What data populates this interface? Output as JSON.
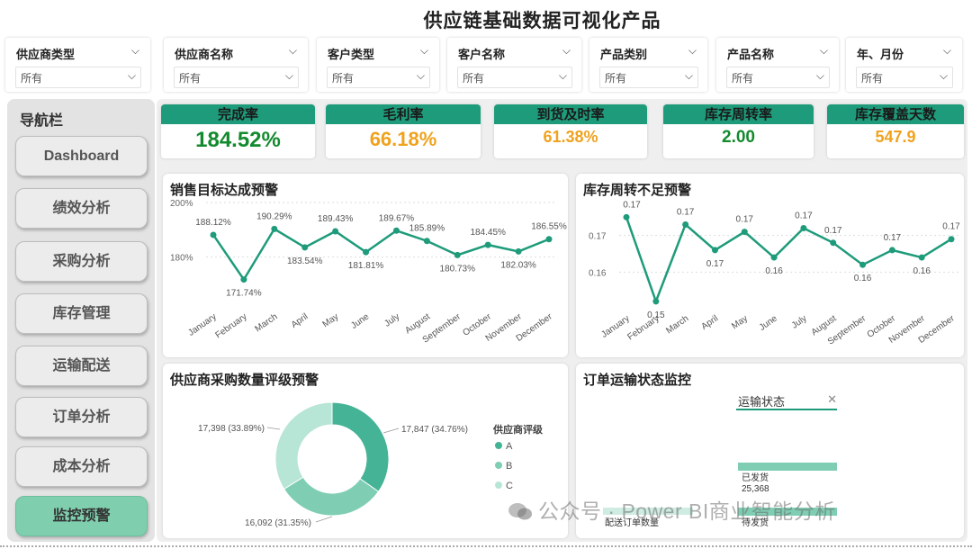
{
  "header": {
    "title": "供应链基础数据可视化产品"
  },
  "filters": [
    {
      "label": "供应商类型",
      "value": "所有"
    },
    {
      "label": "供应商名称",
      "value": "所有"
    },
    {
      "label": "客户类型",
      "value": "所有"
    },
    {
      "label": "客户名称",
      "value": "所有"
    },
    {
      "label": "产品类别",
      "value": "所有"
    },
    {
      "label": "产品名称",
      "value": "所有"
    },
    {
      "label": "年、月份",
      "value": "所有"
    }
  ],
  "nav": {
    "title": "导航栏",
    "items": [
      {
        "label": "Dashboard"
      },
      {
        "label": "绩效分析"
      },
      {
        "label": "采购分析"
      },
      {
        "label": "库存管理"
      },
      {
        "label": "运输配送"
      },
      {
        "label": "订单分析"
      },
      {
        "label": "成本分析"
      },
      {
        "label": "监控预警"
      }
    ],
    "active_index": 7
  },
  "kpis": [
    {
      "label": "完成率",
      "value": "184.52%",
      "color": "#138a2e"
    },
    {
      "label": "毛利率",
      "value": "66.18%",
      "color": "#f0a21e"
    },
    {
      "label": "到货及时率",
      "value": "61.38%",
      "color": "#f0a21e"
    },
    {
      "label": "库存周转率",
      "value": "2.00",
      "color": "#138a2e"
    },
    {
      "label": "库存覆盖天数",
      "value": "547.9",
      "color": "#f0a21e"
    }
  ],
  "colors": {
    "accent": "#1e9b7a",
    "line": "#1e9b7a",
    "pieA": "#45b396",
    "pieB": "#7fceb4",
    "pieC": "#b7e5d6"
  },
  "panels": {
    "sales": {
      "title": "销售目标达成预警"
    },
    "turnover": {
      "title": "库存周转不足预警"
    },
    "supplier": {
      "title": "供应商采购数量评级预警"
    },
    "transport": {
      "title": "订单运输状态监控"
    }
  },
  "chart_data": [
    {
      "type": "line",
      "title": "销售目标达成预警",
      "categories": [
        "January",
        "February",
        "March",
        "April",
        "May",
        "June",
        "July",
        "August",
        "September",
        "October",
        "November",
        "December"
      ],
      "values": [
        188.12,
        171.74,
        190.29,
        183.54,
        189.43,
        181.81,
        189.67,
        185.89,
        180.73,
        184.45,
        182.03,
        186.55
      ],
      "labels": [
        "188.12%",
        "171.74%",
        "190.29%",
        "183.54%",
        "189.43%",
        "181.81%",
        "189.67%",
        "185.89%",
        "180.73%",
        "184.45%",
        "182.03%",
        "186.55%"
      ],
      "yticks": [
        "200%",
        "180%"
      ],
      "ylim": [
        165,
        200
      ]
    },
    {
      "type": "line",
      "title": "库存周转不足预警",
      "categories": [
        "January",
        "February",
        "March",
        "April",
        "May",
        "June",
        "July",
        "August",
        "September",
        "October",
        "November",
        "December"
      ],
      "values": [
        0.175,
        0.152,
        0.173,
        0.166,
        0.171,
        0.164,
        0.172,
        0.168,
        0.162,
        0.166,
        0.164,
        0.169
      ],
      "labels": [
        "0.17",
        "0.15",
        "0.17",
        "0.17",
        "0.17",
        "0.16",
        "0.17",
        "0.17",
        "0.16",
        "0.17",
        "0.16",
        "0.17"
      ],
      "yticks": [
        "0.17",
        "0.16"
      ],
      "ylim": [
        0.15,
        0.18
      ]
    },
    {
      "type": "pie",
      "title": "供应商采购数量评级预警",
      "legend_title": "供应商评级",
      "slices": [
        {
          "name": "A",
          "value": 17847,
          "label": "17,847 (34.76%)"
        },
        {
          "name": "B",
          "value": 16092,
          "label": "16,092 (31.35%)"
        },
        {
          "name": "C",
          "value": 17398,
          "label": "17,398 (33.89%)"
        }
      ]
    },
    {
      "type": "bar",
      "title": "订单运输状态监控",
      "slicer_label": "运输状态",
      "categories": [
        "配送订单数量",
        "已发货",
        "待发货"
      ],
      "values": [
        null,
        25368,
        null
      ],
      "labels": [
        "配送订单数量",
        "已发货",
        "待发货"
      ],
      "value_labels": [
        "",
        "25,368",
        ""
      ]
    }
  ],
  "watermark": "公众号 · Power BI商业智能分析"
}
